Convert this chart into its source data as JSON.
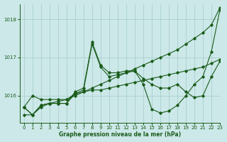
{
  "title": "Graphe pression niveau de la mer (hPa)",
  "bg_color": "#cce8e8",
  "grid_color": "#aacfcf",
  "line_color": "#1a5c1a",
  "xlim": [
    -0.5,
    23
  ],
  "ylim": [
    1015.3,
    1018.4
  ],
  "yticks": [
    1016,
    1017,
    1018
  ],
  "xticks": [
    0,
    1,
    2,
    3,
    4,
    5,
    6,
    7,
    8,
    9,
    10,
    11,
    12,
    13,
    14,
    15,
    16,
    17,
    18,
    19,
    20,
    21,
    22,
    23
  ],
  "series1": [
    1015.7,
    1015.5,
    1015.75,
    1015.8,
    1015.8,
    1015.8,
    1016.1,
    1016.2,
    1017.4,
    1016.8,
    1016.6,
    1016.6,
    1016.65,
    1016.65,
    1016.3,
    1015.65,
    1015.55,
    1015.6,
    1015.75,
    1016.0,
    1016.3,
    1016.5,
    1017.15,
    1018.25
  ],
  "series2": [
    1015.7,
    1015.5,
    1015.75,
    1015.8,
    1015.8,
    1015.8,
    1016.05,
    1016.15,
    1017.35,
    1016.75,
    1016.5,
    1016.55,
    1016.6,
    1016.65,
    1016.45,
    1016.3,
    1016.2,
    1016.2,
    1016.3,
    1016.1,
    1015.95,
    1016.0,
    1016.5,
    1016.9
  ],
  "series3": [
    1015.7,
    1016.0,
    1015.9,
    1015.9,
    1015.9,
    1015.9,
    1016.05,
    1016.1,
    1016.15,
    1016.15,
    1016.2,
    1016.25,
    1016.3,
    1016.35,
    1016.4,
    1016.45,
    1016.5,
    1016.55,
    1016.6,
    1016.65,
    1016.7,
    1016.75,
    1016.85,
    1016.95
  ],
  "series4": [
    1015.5,
    1015.5,
    1015.7,
    1015.8,
    1015.85,
    1015.9,
    1016.0,
    1016.1,
    1016.2,
    1016.3,
    1016.4,
    1016.5,
    1016.6,
    1016.7,
    1016.8,
    1016.9,
    1017.0,
    1017.1,
    1017.2,
    1017.35,
    1017.5,
    1017.65,
    1017.85,
    1018.3
  ]
}
